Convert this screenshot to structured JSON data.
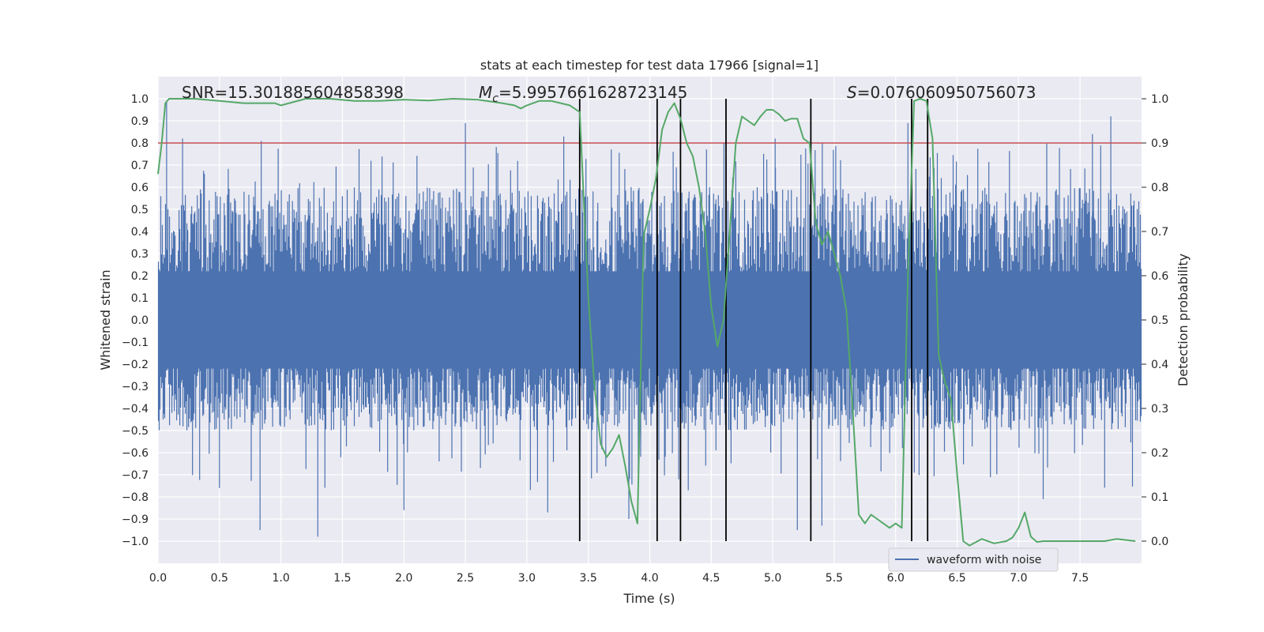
{
  "chart_data": {
    "type": "line",
    "title": "stats at each timestep for test data 17966 [signal=1]",
    "xlabel": "Time (s)",
    "ylabel": "Whitened strain",
    "y2label": "Detection probability",
    "xlim": [
      0.0,
      8.0
    ],
    "ylim": [
      -1.1,
      1.1
    ],
    "y2lim": [
      -0.05,
      1.05
    ],
    "x_ticks": [
      0.0,
      0.5,
      1.0,
      1.5,
      2.0,
      2.5,
      3.0,
      3.5,
      4.0,
      4.5,
      5.0,
      5.5,
      6.0,
      6.5,
      7.0,
      7.5
    ],
    "x_tick_labels": [
      "0.0",
      "0.5",
      "1.0",
      "1.5",
      "2.0",
      "2.5",
      "3.0",
      "3.5",
      "4.0",
      "4.5",
      "5.0",
      "5.5",
      "6.0",
      "6.5",
      "7.0",
      "7.5"
    ],
    "y_ticks": [
      -1.0,
      -0.9,
      -0.8,
      -0.7,
      -0.6,
      -0.5,
      -0.4,
      -0.3,
      -0.2,
      -0.1,
      0.0,
      0.1,
      0.2,
      0.3,
      0.4,
      0.5,
      0.6,
      0.7,
      0.8,
      0.9,
      1.0
    ],
    "y_tick_labels": [
      "−1.0",
      "−0.9",
      "−0.8",
      "−0.7",
      "−0.6",
      "−0.5",
      "−0.4",
      "−0.3",
      "−0.2",
      "−0.1",
      "0.0",
      "0.1",
      "0.2",
      "0.3",
      "0.4",
      "0.5",
      "0.6",
      "0.7",
      "0.8",
      "0.9",
      "1.0"
    ],
    "y2_ticks": [
      0.0,
      0.1,
      0.2,
      0.3,
      0.4,
      0.5,
      0.6,
      0.7,
      0.8,
      0.9,
      1.0
    ],
    "y2_tick_labels": [
      "0.0",
      "0.1",
      "0.2",
      "0.3",
      "0.4",
      "0.5",
      "0.6",
      "0.7",
      "0.8",
      "0.9",
      "1.0"
    ],
    "grid": true,
    "threshold": {
      "value": 0.8,
      "axis": "left",
      "color": "#c44e52"
    },
    "event_markers_x": [
      3.43,
      4.06,
      4.25,
      4.62,
      5.31,
      6.13,
      6.26
    ],
    "annotations": {
      "snr": "SNR=15.301885604858398",
      "mc_symbol": "M",
      "mc_sub": "c",
      "mc_value": "=5.9957661628723145",
      "s_symbol": "S",
      "s_value": "=0.076060950756073"
    },
    "legend": {
      "label": "waveform with noise",
      "position": "lower-center-right"
    },
    "series": [
      {
        "name": "waveform with noise",
        "axis": "left",
        "color": "#4c72b0",
        "kind": "dense noise (whitened strain)",
        "envelope_typical": [
          -0.5,
          0.6
        ],
        "envelope_extreme": [
          -0.98,
          0.99
        ],
        "spikes": [
          {
            "x": 0.07,
            "y": 0.99
          },
          {
            "x": 0.2,
            "y": 0.82
          },
          {
            "x": 0.84,
            "y": 0.81
          },
          {
            "x": 2.5,
            "y": 0.89
          },
          {
            "x": 3.3,
            "y": 0.83
          },
          {
            "x": 5.02,
            "y": 0.82
          },
          {
            "x": 6.1,
            "y": 0.89
          },
          {
            "x": 7.6,
            "y": 0.84
          },
          {
            "x": 7.75,
            "y": 0.92
          },
          {
            "x": 0.83,
            "y": -0.95
          },
          {
            "x": 1.3,
            "y": -0.98
          },
          {
            "x": 2.0,
            "y": -0.86
          },
          {
            "x": 3.17,
            "y": -0.87
          },
          {
            "x": 3.83,
            "y": -0.9
          },
          {
            "x": 5.2,
            "y": -0.95
          },
          {
            "x": 5.4,
            "y": -0.93
          },
          {
            "x": 7.2,
            "y": -0.81
          },
          {
            "x": 0.5,
            "y": -0.76
          }
        ]
      },
      {
        "name": "detection probability",
        "axis": "right",
        "color": "#55a868",
        "x": [
          0.0,
          0.03,
          0.06,
          0.09,
          0.15,
          0.3,
          0.5,
          0.7,
          0.85,
          0.95,
          1.0,
          1.2,
          1.4,
          1.6,
          1.8,
          2.0,
          2.2,
          2.4,
          2.6,
          2.8,
          2.9,
          2.95,
          3.0,
          3.1,
          3.2,
          3.35,
          3.43,
          3.5,
          3.55,
          3.6,
          3.65,
          3.7,
          3.75,
          3.8,
          3.85,
          3.9,
          3.95,
          4.0,
          4.05,
          4.1,
          4.15,
          4.2,
          4.25,
          4.3,
          4.35,
          4.4,
          4.45,
          4.5,
          4.55,
          4.6,
          4.65,
          4.7,
          4.75,
          4.8,
          4.85,
          4.9,
          4.95,
          5.0,
          5.05,
          5.1,
          5.15,
          5.2,
          5.25,
          5.3,
          5.35,
          5.4,
          5.45,
          5.5,
          5.55,
          5.6,
          5.65,
          5.7,
          5.75,
          5.8,
          5.85,
          5.9,
          5.95,
          6.0,
          6.05,
          6.1,
          6.15,
          6.2,
          6.25,
          6.3,
          6.35,
          6.4,
          6.45,
          6.5,
          6.55,
          6.6,
          6.7,
          6.8,
          6.9,
          6.95,
          7.0,
          7.05,
          7.1,
          7.15,
          7.2,
          7.3,
          7.4,
          7.5,
          7.6,
          7.7,
          7.8,
          7.95
        ],
        "y": [
          0.83,
          0.9,
          0.99,
          1.0,
          1.0,
          1.0,
          0.995,
          0.99,
          0.99,
          0.99,
          0.985,
          1.0,
          1.0,
          0.995,
          0.995,
          0.998,
          0.996,
          1.0,
          0.998,
          0.99,
          0.985,
          0.978,
          0.985,
          0.995,
          0.995,
          0.985,
          0.97,
          0.55,
          0.35,
          0.22,
          0.19,
          0.21,
          0.24,
          0.17,
          0.09,
          0.04,
          0.69,
          0.75,
          0.82,
          0.93,
          0.97,
          0.99,
          0.955,
          0.9,
          0.87,
          0.8,
          0.7,
          0.53,
          0.44,
          0.5,
          0.7,
          0.9,
          0.96,
          0.95,
          0.94,
          0.96,
          0.975,
          0.975,
          0.965,
          0.95,
          0.955,
          0.955,
          0.91,
          0.9,
          0.72,
          0.67,
          0.7,
          0.65,
          0.6,
          0.52,
          0.3,
          0.06,
          0.04,
          0.06,
          0.05,
          0.04,
          0.03,
          0.04,
          0.03,
          0.6,
          0.995,
          1.0,
          0.995,
          0.91,
          0.42,
          0.36,
          0.32,
          0.15,
          0.0,
          -0.01,
          0.005,
          -0.005,
          0.0,
          0.008,
          0.03,
          0.065,
          0.01,
          -0.002,
          0.0,
          0.0,
          0.0,
          0.0,
          0.0,
          0.0,
          0.005,
          0.0
        ]
      }
    ]
  }
}
